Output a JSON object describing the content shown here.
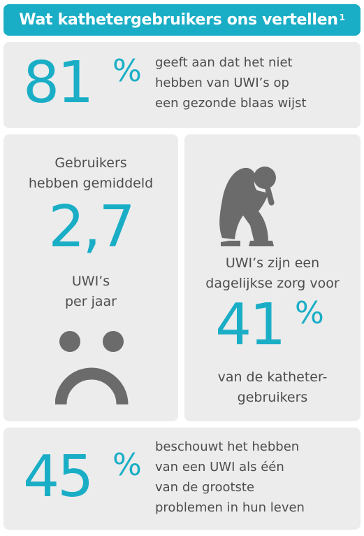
{
  "header": {
    "title": "Wat kathetergebruikers ons vertellen",
    "footnote": "1"
  },
  "stat1": {
    "value": "81",
    "unit": "%",
    "lines": [
      "geeft aan dat het niet",
      "hebben van UWI’s op",
      "een gezonde blaas wijst"
    ]
  },
  "stat2": {
    "top_lines": [
      "Gebruikers",
      "hebben gemiddeld"
    ],
    "value": "2,7",
    "bottom_lines": [
      "UWI’s",
      "per jaar"
    ],
    "icon": "sad-face-icon"
  },
  "stat3": {
    "icon": "distressed-person-icon",
    "top_lines": [
      "UWI’s zijn een",
      "dagelijkse zorg voor"
    ],
    "value": "41",
    "unit": "%",
    "bottom_lines": [
      "van de katheter-",
      "gebruikers"
    ]
  },
  "stat4": {
    "value": "45",
    "unit": "%",
    "lines": [
      "beschouwt het hebben",
      "van een UWI als één",
      "van de grootste",
      "problemen in hun leven"
    ]
  },
  "colors": {
    "accent": "#1aaec6",
    "panel": "#ececec",
    "text": "#4d4d4d",
    "icon": "#6b6b6b"
  }
}
